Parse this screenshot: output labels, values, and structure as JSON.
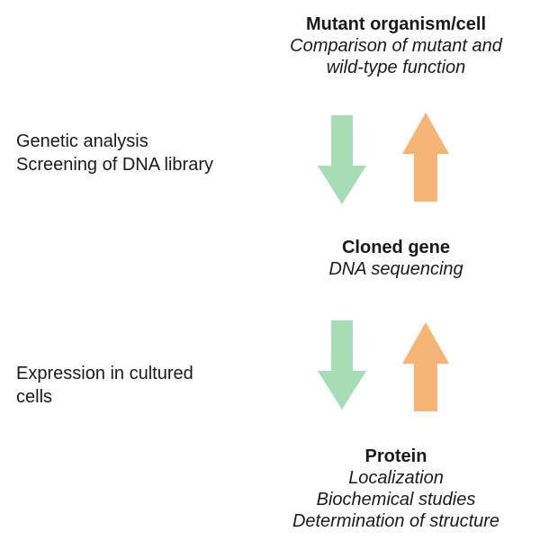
{
  "nodes": {
    "mutant": {
      "title": "Mutant organism/cell",
      "details": [
        "Comparison of mutant and",
        "wild-type function"
      ]
    },
    "gene": {
      "title": "Cloned gene",
      "details": [
        "DNA sequencing"
      ]
    },
    "protein": {
      "title": "Protein",
      "details": [
        "Localization",
        "Biochemical studies",
        "Determination of structure"
      ]
    }
  },
  "side_labels": {
    "genetic": [
      "Genetic analysis",
      "Screening of DNA library"
    ],
    "expression": [
      "Expression in cultured",
      "cells"
    ]
  },
  "colors": {
    "down_arrow": "#a8dcb4",
    "up_arrow": "#f7b575"
  }
}
